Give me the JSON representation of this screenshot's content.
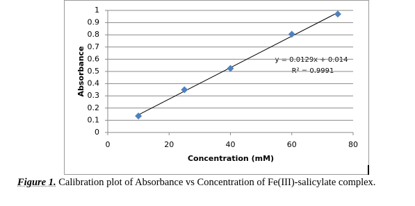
{
  "chart_data": {
    "type": "scatter",
    "x_label": "Concentration (mM)",
    "y_label": "Absorbance",
    "x": [
      10,
      25,
      40,
      60,
      75
    ],
    "values": [
      0.135,
      0.35,
      0.525,
      0.805,
      0.97
    ],
    "color": "#4f81bd",
    "xlim": [
      0,
      80
    ],
    "xticks": [
      0,
      20,
      40,
      60,
      80
    ],
    "ylim": [
      0,
      1
    ],
    "yticks": [
      0,
      0.1,
      0.2,
      0.3,
      0.4,
      0.5,
      0.6,
      0.7,
      0.8,
      0.9,
      1
    ],
    "grid": true,
    "trendline": true,
    "annotations": [
      "y = 0.0129x + 0.014",
      "R² = 0.9991"
    ]
  },
  "caption": {
    "label": "Figure 1.",
    "text": "Calibration plot of Absorbance vs Concentration of Fe(III)-salicylate complex."
  }
}
